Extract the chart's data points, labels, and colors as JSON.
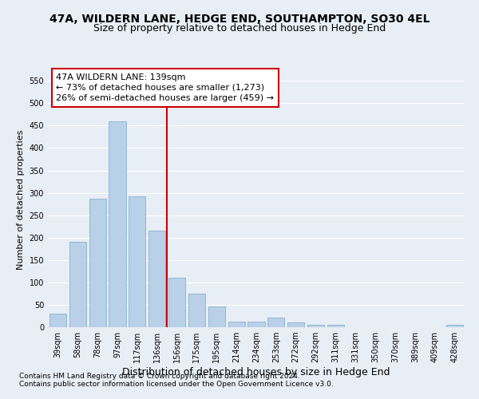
{
  "title": "47A, WILDERN LANE, HEDGE END, SOUTHAMPTON, SO30 4EL",
  "subtitle": "Size of property relative to detached houses in Hedge End",
  "xlabel": "Distribution of detached houses by size in Hedge End",
  "ylabel": "Number of detached properties",
  "categories": [
    "39sqm",
    "58sqm",
    "78sqm",
    "97sqm",
    "117sqm",
    "136sqm",
    "156sqm",
    "175sqm",
    "195sqm",
    "214sqm",
    "234sqm",
    "253sqm",
    "272sqm",
    "292sqm",
    "311sqm",
    "331sqm",
    "350sqm",
    "370sqm",
    "389sqm",
    "409sqm",
    "428sqm"
  ],
  "values": [
    30,
    190,
    287,
    460,
    293,
    215,
    110,
    75,
    47,
    13,
    13,
    22,
    10,
    6,
    6,
    0,
    0,
    0,
    0,
    0,
    6
  ],
  "bar_color": "#b8d0e8",
  "bar_edgecolor": "#7aaac8",
  "vline_x": 5.5,
  "vline_color": "#cc0000",
  "annotation_text": "47A WILDERN LANE: 139sqm\n← 73% of detached houses are smaller (1,273)\n26% of semi-detached houses are larger (459) →",
  "annotation_box_color": "#ffffff",
  "annotation_box_edgecolor": "#cc0000",
  "ylim": [
    0,
    570
  ],
  "yticks": [
    0,
    50,
    100,
    150,
    200,
    250,
    300,
    350,
    400,
    450,
    500,
    550
  ],
  "footnote1": "Contains HM Land Registry data © Crown copyright and database right 2024.",
  "footnote2": "Contains public sector information licensed under the Open Government Licence v3.0.",
  "fig_bg_color": "#e8eef5",
  "plot_bg_color": "#e8eef5",
  "grid_color": "#ffffff",
  "title_fontsize": 10,
  "subtitle_fontsize": 9,
  "xlabel_fontsize": 9,
  "ylabel_fontsize": 8,
  "tick_fontsize": 7,
  "annotation_fontsize": 8,
  "footnote_fontsize": 6.5
}
